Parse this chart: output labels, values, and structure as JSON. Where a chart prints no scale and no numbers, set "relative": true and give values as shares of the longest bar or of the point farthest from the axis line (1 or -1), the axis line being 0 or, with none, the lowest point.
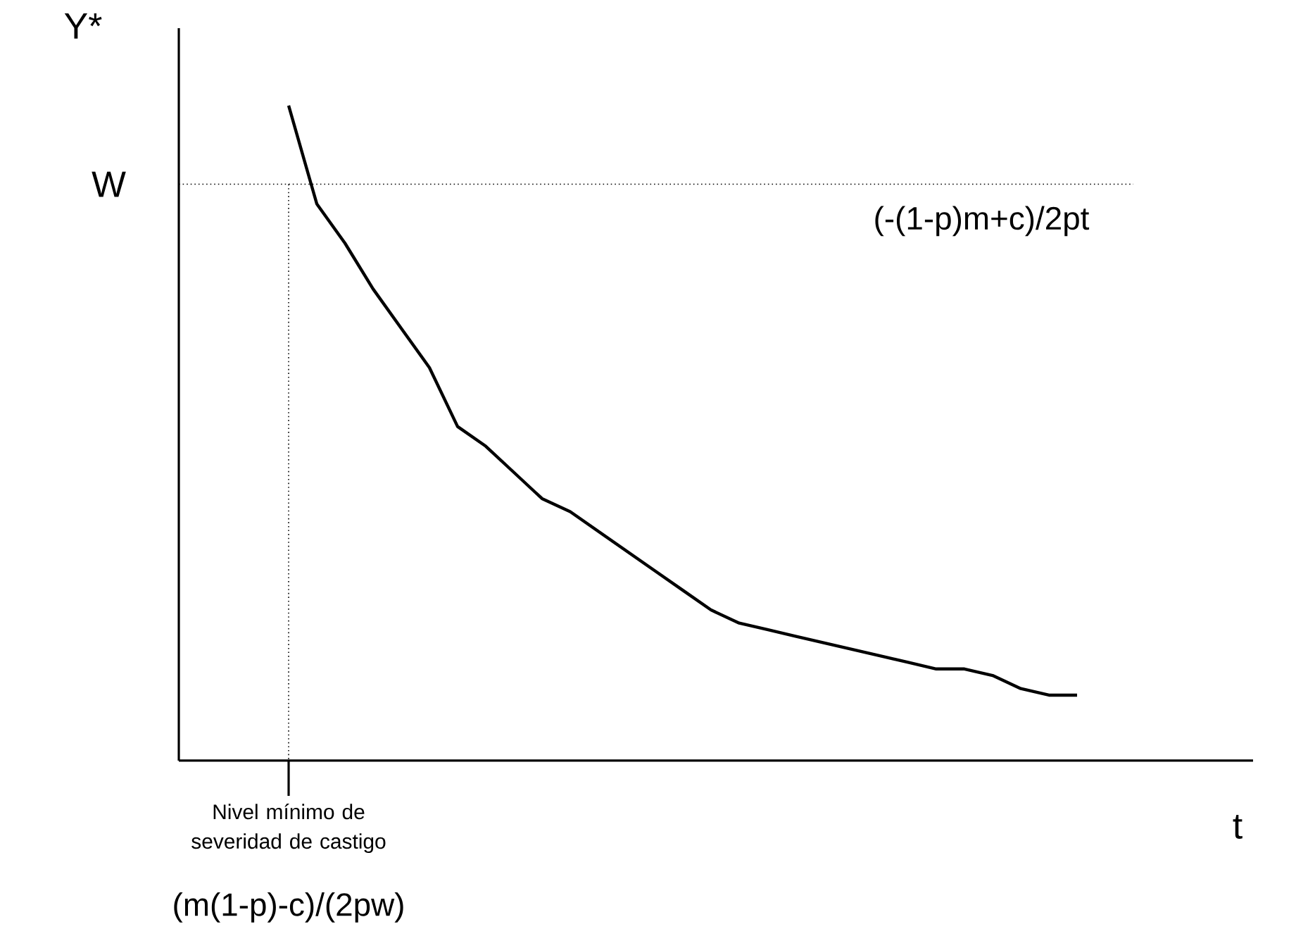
{
  "chart_data": {
    "type": "line",
    "relative": true,
    "categories": [
      null,
      null,
      null,
      null,
      null,
      null,
      null,
      null,
      null,
      null,
      null,
      null,
      null,
      null,
      null,
      null,
      null,
      null,
      null,
      null,
      null,
      null,
      null,
      null,
      null,
      null,
      null,
      null,
      null
    ],
    "series": [
      {
        "color": "#000000",
        "values": [
          1.0,
          0.85,
          0.79,
          0.72,
          0.66,
          0.6,
          0.51,
          0.48,
          0.44,
          0.4,
          0.38,
          0.35,
          0.32,
          0.29,
          0.26,
          0.23,
          0.21,
          0.2,
          0.19,
          0.18,
          0.17,
          0.16,
          0.15,
          0.14,
          0.14,
          0.13,
          0.11,
          0.1,
          0.1
        ]
      }
    ],
    "ref_lines": [
      {
        "axis": "y",
        "value": 0.88,
        "label": "W",
        "line_style": "dotted"
      }
    ],
    "annotations": [
      "Nivel mínimo de severidad de castigo",
      "(m(1-p)-c)/(2pw)",
      "(-(1-p)m+c)/2pt",
      "t",
      "Y*"
    ],
    "marker": "none",
    "line_style": "solid"
  }
}
